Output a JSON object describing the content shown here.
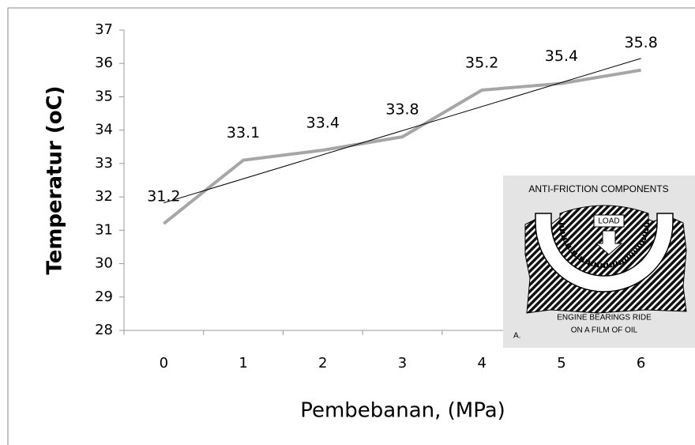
{
  "chart_data": {
    "type": "line",
    "categories": [
      "0",
      "1",
      "2",
      "3",
      "4",
      "5",
      "6"
    ],
    "series": [
      {
        "values": [
          31.2,
          33.1,
          33.4,
          33.8,
          35.2,
          35.4,
          35.8
        ],
        "color": "#a6a6a6"
      }
    ],
    "trendline": "linear",
    "trendline_color": "#000000",
    "ylim": [
      28,
      37
    ],
    "yticks": [
      28,
      29,
      30,
      31,
      32,
      33,
      34,
      35,
      36,
      37
    ],
    "xlabel": "Pembebanan, (MPa)",
    "ylabel": "Temperatur (oC)"
  },
  "inset": {
    "title": "ANTI-FRICTION COMPONENTS",
    "load_label": "LOAD",
    "caption": [
      "ENGINE BEARINGS RIDE",
      "ON A FILM OF OIL"
    ],
    "tag": "A."
  }
}
